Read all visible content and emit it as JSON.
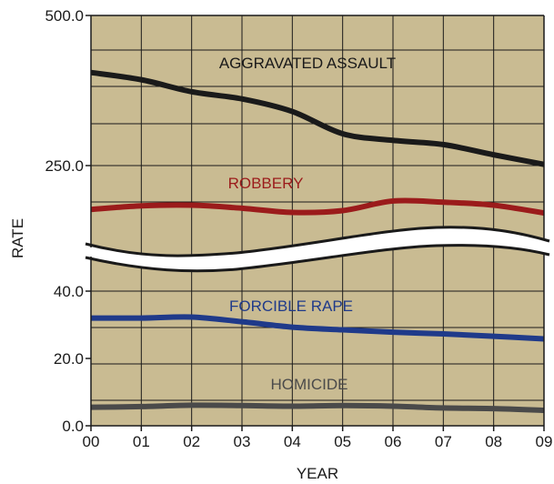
{
  "chart_data": {
    "type": "line",
    "xlabel": "YEAR",
    "ylabel": "RATE",
    "x": [
      "00",
      "01",
      "02",
      "03",
      "04",
      "05",
      "06",
      "07",
      "08",
      "09"
    ],
    "upper_panel": {
      "ylim": [
        0,
        500
      ],
      "ytick_labels": [
        "500.0",
        "250.0"
      ],
      "yticks": [
        500,
        250
      ],
      "series": [
        {
          "name": "AGGRAVATED ASSAULT",
          "color": "#1a1a1a",
          "values": [
            405,
            393,
            373,
            361,
            340,
            303,
            292,
            285,
            268,
            252
          ]
        },
        {
          "name": "ROBBERY",
          "color": "#9b1b1b",
          "values": [
            177,
            183,
            184,
            179,
            172,
            175,
            191,
            189,
            184,
            171
          ]
        }
      ]
    },
    "lower_panel": {
      "ylim": [
        0,
        40
      ],
      "ytick_labels": [
        "40.0",
        "20.0",
        "0.0"
      ],
      "yticks": [
        40,
        20,
        0
      ],
      "series": [
        {
          "name": "FORCIBLE RAPE",
          "color": "#1f3a8a",
          "values": [
            32.0,
            32.0,
            32.3,
            30.9,
            29.3,
            28.5,
            27.8,
            27.3,
            26.6,
            25.8
          ]
        },
        {
          "name": "HOMICIDE",
          "color": "#4a4a4a",
          "values": [
            5.5,
            5.7,
            6.1,
            6.0,
            5.8,
            6.0,
            5.8,
            5.3,
            5.1,
            4.6
          ]
        }
      ]
    },
    "axis_break": true,
    "grid": true,
    "background_color": "#c9bb92"
  }
}
